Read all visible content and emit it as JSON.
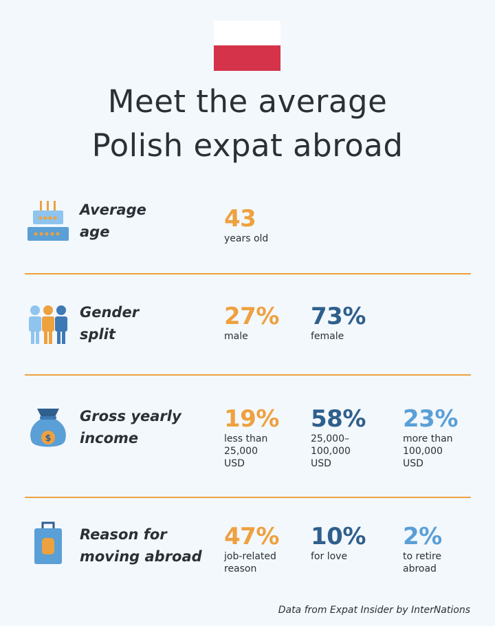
{
  "colors": {
    "orange": "#eea13f",
    "dark_blue": "#2f5f8c",
    "mid_blue": "#5a9fd6",
    "flag_red": "#d4334a",
    "divider": "#eea13f"
  },
  "title": {
    "line1": "Meet the average",
    "line2": "Polish expat abroad"
  },
  "rows": [
    {
      "icon": "cake-icon",
      "label_line1": "Average",
      "label_line2": "age",
      "stats": [
        {
          "value": "43",
          "caption": "years old",
          "color": "orange"
        }
      ]
    },
    {
      "icon": "people-icon",
      "label_line1": "Gender",
      "label_line2": "split",
      "stats": [
        {
          "value": "27%",
          "caption": "male",
          "color": "orange"
        },
        {
          "value": "73%",
          "caption": "female",
          "color": "dark_blue"
        }
      ]
    },
    {
      "icon": "money-bag-icon",
      "label_line1": "Gross yearly",
      "label_line2": "income",
      "stats": [
        {
          "value": "19%",
          "caption": "less than\n25,000\nUSD",
          "color": "orange"
        },
        {
          "value": "58%",
          "caption": "25,000–\n100,000\nUSD",
          "color": "dark_blue"
        },
        {
          "value": "23%",
          "caption": "more than\n100,000\nUSD",
          "color": "mid_blue"
        }
      ]
    },
    {
      "icon": "suitcase-icon",
      "label_line1": "Reason for",
      "label_line2": "moving abroad",
      "stats": [
        {
          "value": "47%",
          "caption": "job-related\nreason",
          "color": "orange"
        },
        {
          "value": "10%",
          "caption": "for love",
          "color": "dark_blue"
        },
        {
          "value": "2%",
          "caption": "to retire\nabroad",
          "color": "mid_blue"
        }
      ]
    }
  ],
  "source": "Data from Expat Insider by InterNations"
}
